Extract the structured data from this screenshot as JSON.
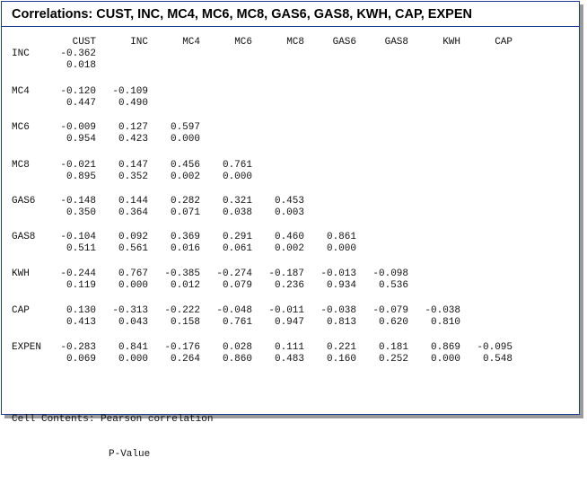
{
  "window": {
    "title": "Correlations: CUST, INC, MC4, MC6, MC8, GAS6, GAS8, KWH, CAP, EXPEN"
  },
  "columns": [
    "CUST",
    "INC",
    "MC4",
    "MC6",
    "MC8",
    "GAS6",
    "GAS8",
    "KWH",
    "CAP"
  ],
  "rows": [
    {
      "label": "INC",
      "corr": [
        "-0.362"
      ],
      "p": [
        "0.018"
      ]
    },
    {
      "label": "MC4",
      "corr": [
        "-0.120",
        "-0.109"
      ],
      "p": [
        "0.447",
        "0.490"
      ]
    },
    {
      "label": "MC6",
      "corr": [
        "-0.009",
        "0.127",
        "0.597"
      ],
      "p": [
        "0.954",
        "0.423",
        "0.000"
      ]
    },
    {
      "label": "MC8",
      "corr": [
        "-0.021",
        "0.147",
        "0.456",
        "0.761"
      ],
      "p": [
        "0.895",
        "0.352",
        "0.002",
        "0.000"
      ]
    },
    {
      "label": "GAS6",
      "corr": [
        "-0.148",
        "0.144",
        "0.282",
        "0.321",
        "0.453"
      ],
      "p": [
        "0.350",
        "0.364",
        "0.071",
        "0.038",
        "0.003"
      ]
    },
    {
      "label": "GAS8",
      "corr": [
        "-0.104",
        "0.092",
        "0.369",
        "0.291",
        "0.460",
        "0.861"
      ],
      "p": [
        "0.511",
        "0.561",
        "0.016",
        "0.061",
        "0.002",
        "0.000"
      ]
    },
    {
      "label": "KWH",
      "corr": [
        "-0.244",
        "0.767",
        "-0.385",
        "-0.274",
        "-0.187",
        "-0.013",
        "-0.098"
      ],
      "p": [
        "0.119",
        "0.000",
        "0.012",
        "0.079",
        "0.236",
        "0.934",
        "0.536"
      ]
    },
    {
      "label": "CAP",
      "corr": [
        "0.130",
        "-0.313",
        "-0.222",
        "-0.048",
        "-0.011",
        "-0.038",
        "-0.079",
        "-0.038"
      ],
      "p": [
        "0.413",
        "0.043",
        "0.158",
        "0.761",
        "0.947",
        "0.813",
        "0.620",
        "0.810"
      ]
    },
    {
      "label": "EXPEN",
      "corr": [
        "-0.283",
        "0.841",
        "-0.176",
        "0.028",
        "0.111",
        "0.221",
        "0.181",
        "0.869",
        "-0.095"
      ],
      "p": [
        "0.069",
        "0.000",
        "0.264",
        "0.860",
        "0.483",
        "0.160",
        "0.252",
        "0.000",
        "0.548"
      ]
    }
  ],
  "footer": {
    "label": "Cell Contents:",
    "line1": "Pearson correlation",
    "line2": "P-Value"
  }
}
